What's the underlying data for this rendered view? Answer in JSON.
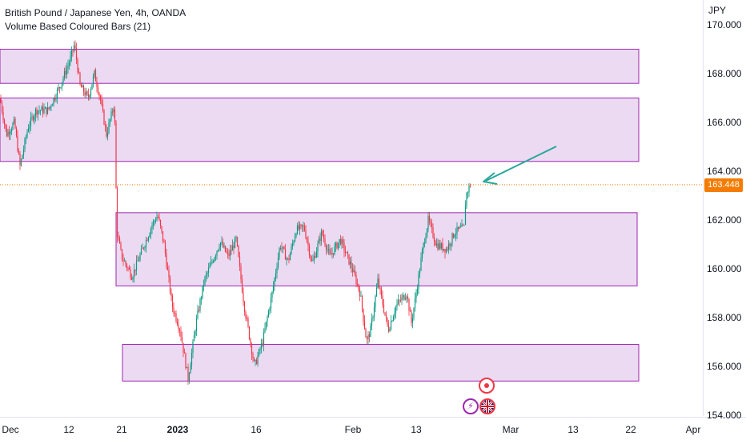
{
  "legend": {
    "symbol_line": "British Pound / Japanese Yen, 4h, OANDA",
    "indicator_line": "Volume Based Coloured Bars (21)"
  },
  "currency": "JPY",
  "last_price": "163.448",
  "colors": {
    "up": "#089981",
    "down": "#f23645",
    "zone_fill": "#e8d4f0",
    "zone_border": "#9c27b0",
    "arrow": "#26a69a",
    "price_line": "#f57c00"
  },
  "icons": [
    "record-icon",
    "lightning-icon",
    "uk-flag-icon"
  ],
  "chart_data": {
    "type": "candlestick",
    "y_ticks": [
      "170.000",
      "168.000",
      "166.000",
      "164.000",
      "162.000",
      "160.000",
      "158.000",
      "156.000",
      "154.000"
    ],
    "x_ticks": [
      "Dec",
      "12",
      "21",
      "2023",
      "16",
      "Feb",
      "13",
      "Mar",
      "13",
      "22",
      "Apr"
    ],
    "ylim": [
      154,
      170.5
    ],
    "grid": false,
    "zones": [
      {
        "low": 167.6,
        "high": 169.0
      },
      {
        "low": 164.4,
        "high": 167.0
      },
      {
        "low": 159.3,
        "high": 162.3
      },
      {
        "low": 155.4,
        "high": 156.9
      }
    ],
    "price_path": [
      [
        0,
        167.0
      ],
      [
        8,
        165.5
      ],
      [
        18,
        166.0
      ],
      [
        25,
        164.2
      ],
      [
        35,
        165.8
      ],
      [
        45,
        166.5
      ],
      [
        60,
        166.5
      ],
      [
        75,
        167.5
      ],
      [
        88,
        168.6
      ],
      [
        93,
        169.2
      ],
      [
        100,
        167.5
      ],
      [
        110,
        167.0
      ],
      [
        118,
        168.0
      ],
      [
        125,
        167.0
      ],
      [
        133,
        165.5
      ],
      [
        143,
        166.8
      ],
      [
        146,
        161.5
      ],
      [
        152,
        160.5
      ],
      [
        165,
        159.7
      ],
      [
        178,
        160.8
      ],
      [
        190,
        161.8
      ],
      [
        197,
        162.2
      ],
      [
        205,
        161.0
      ],
      [
        215,
        158.5
      ],
      [
        225,
        157.5
      ],
      [
        235,
        155.5
      ],
      [
        245,
        157.8
      ],
      [
        255,
        159.5
      ],
      [
        265,
        160.3
      ],
      [
        275,
        161.1
      ],
      [
        285,
        160.5
      ],
      [
        295,
        161.2
      ],
      [
        305,
        158.5
      ],
      [
        318,
        156.0
      ],
      [
        328,
        157.0
      ],
      [
        340,
        159.0
      ],
      [
        350,
        161.0
      ],
      [
        360,
        160.3
      ],
      [
        370,
        161.6
      ],
      [
        380,
        161.7
      ],
      [
        390,
        160.2
      ],
      [
        402,
        161.5
      ],
      [
        412,
        160.5
      ],
      [
        425,
        161.2
      ],
      [
        440,
        160.0
      ],
      [
        450,
        159.0
      ],
      [
        458,
        157.0
      ],
      [
        463,
        157.5
      ],
      [
        472,
        159.5
      ],
      [
        485,
        157.5
      ],
      [
        495,
        158.5
      ],
      [
        508,
        159.0
      ],
      [
        514,
        157.8
      ],
      [
        520,
        159.0
      ],
      [
        528,
        160.8
      ],
      [
        535,
        162.0
      ],
      [
        545,
        161.0
      ],
      [
        558,
        160.8
      ],
      [
        568,
        161.5
      ],
      [
        580,
        161.7
      ],
      [
        582,
        163.0
      ],
      [
        588,
        163.5
      ]
    ]
  }
}
